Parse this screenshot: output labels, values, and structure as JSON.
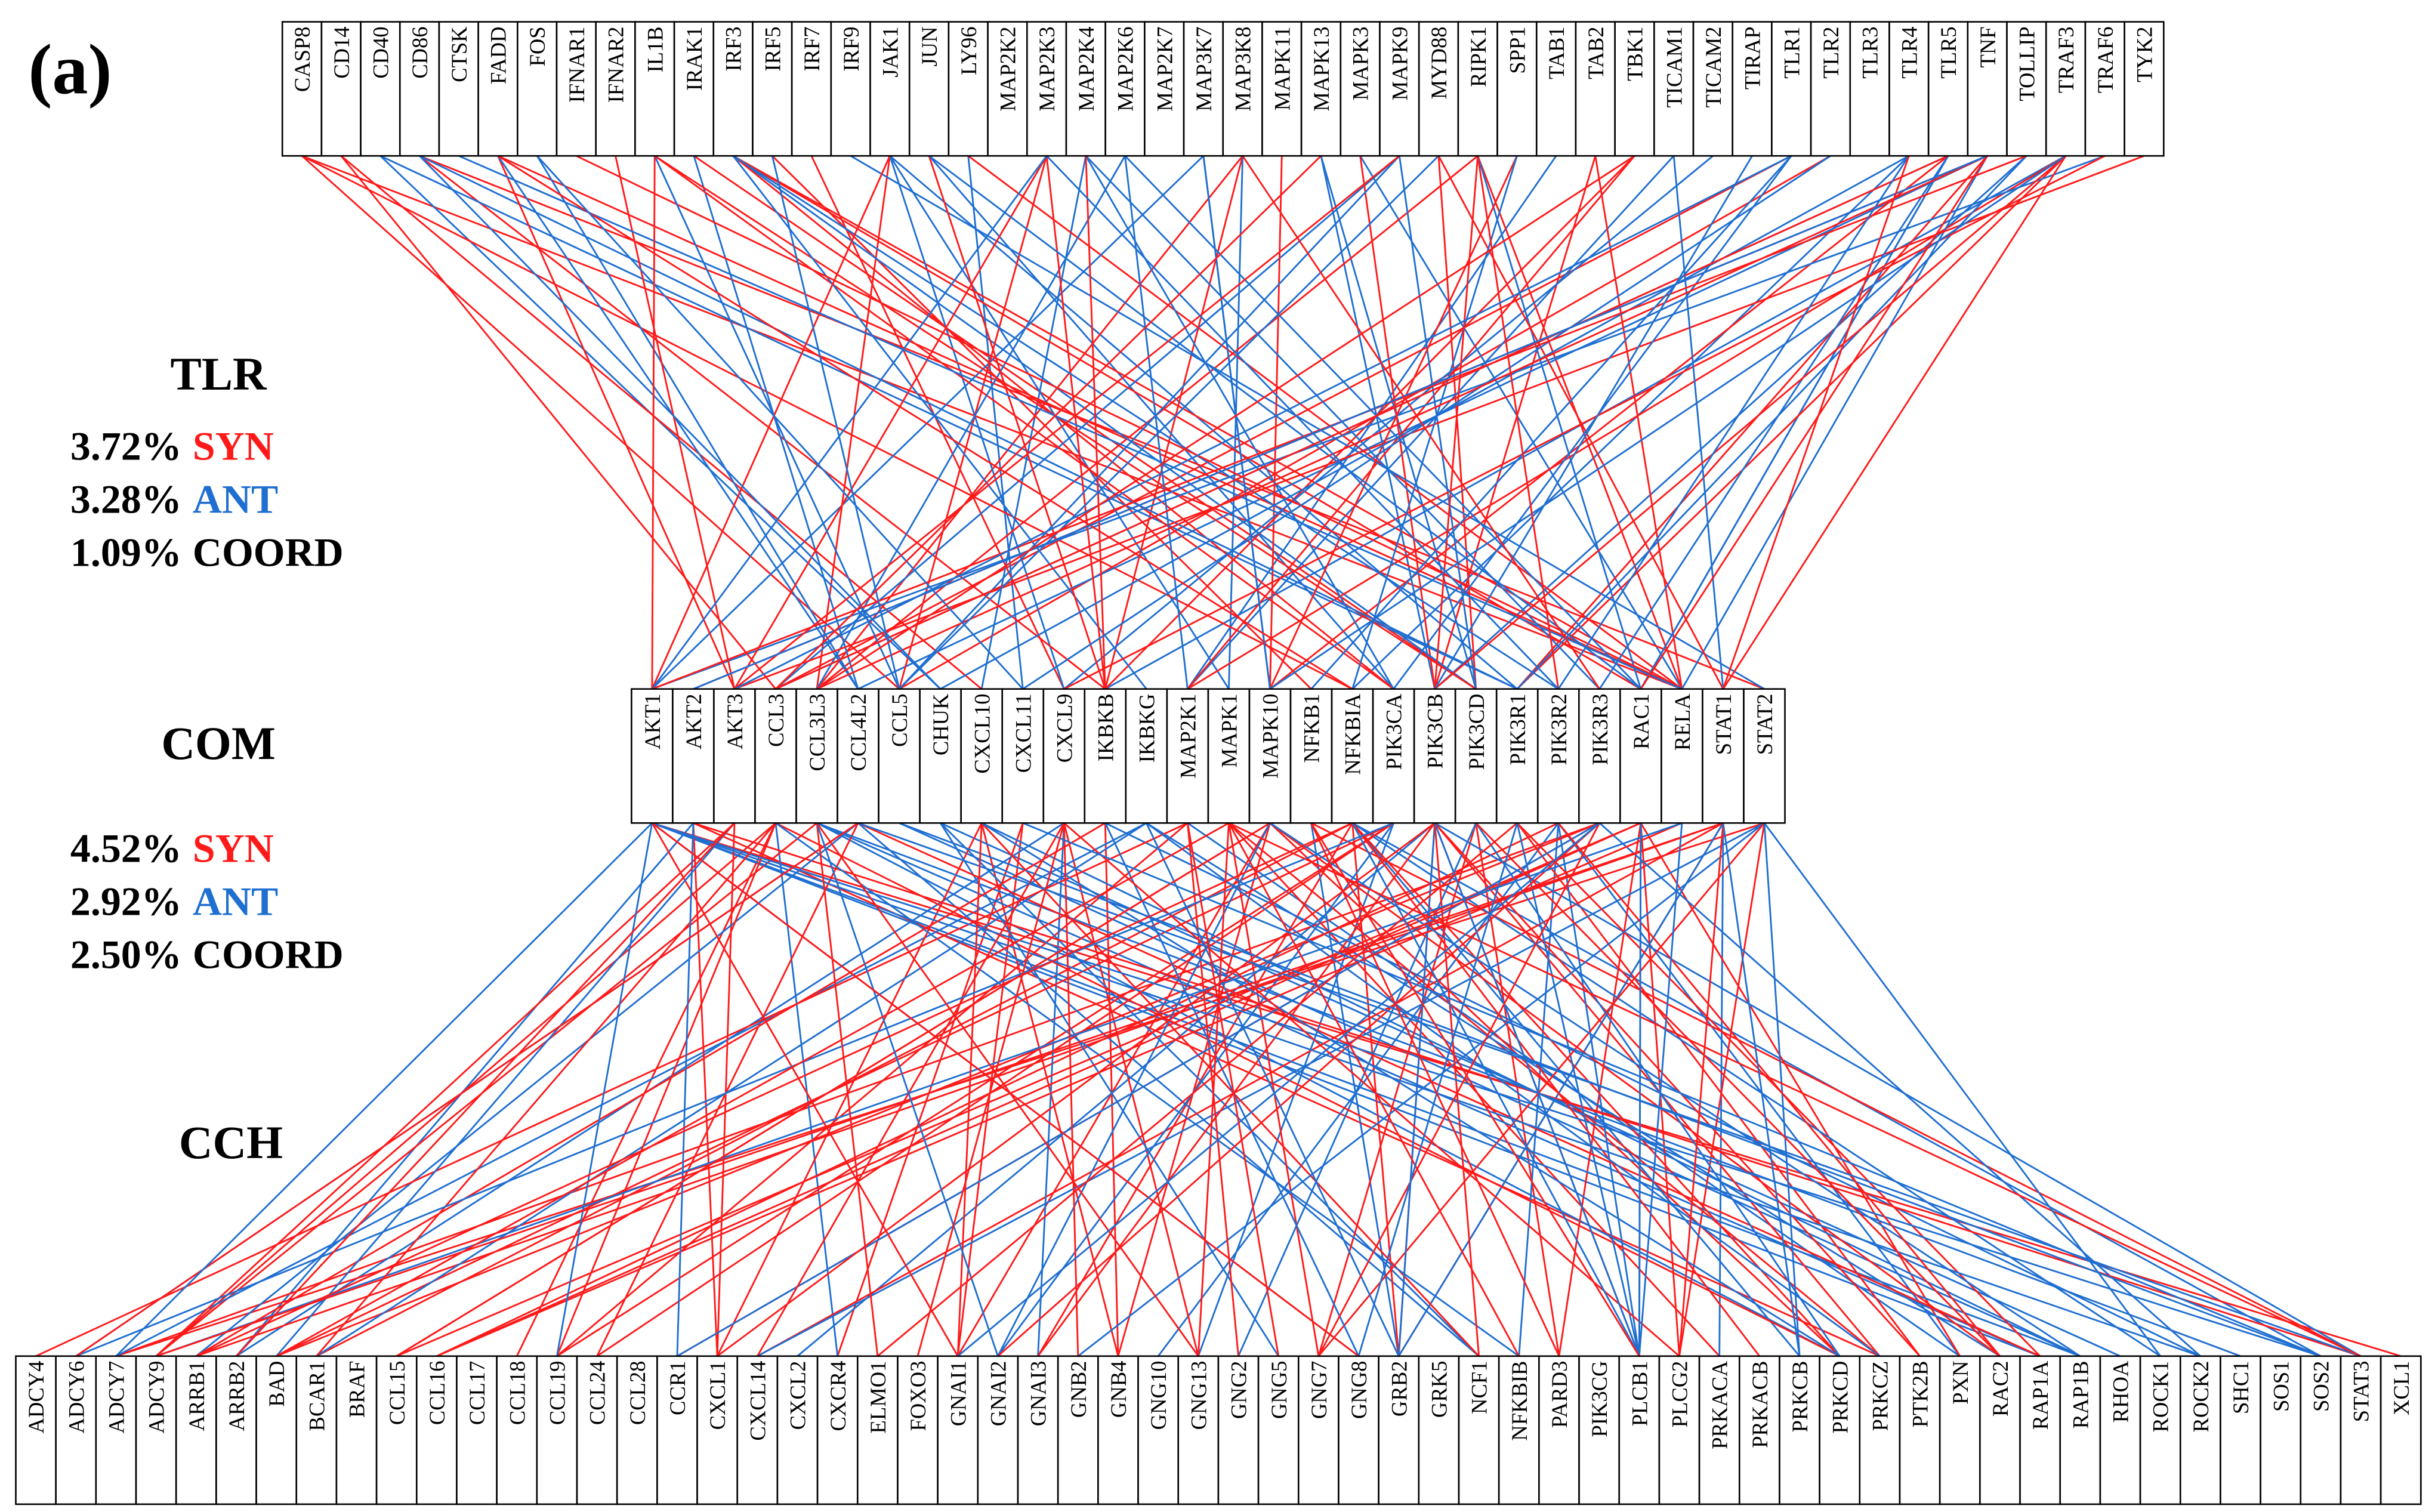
{
  "panel_label": "(a)",
  "layers": [
    {
      "name": "TLR",
      "stats": [
        {
          "value": "3.72%",
          "kind": "SYN"
        },
        {
          "value": "3.28%",
          "kind": "ANT"
        },
        {
          "value": "1.09%",
          "kind": "COORD"
        }
      ],
      "nodes": [
        "CASP8",
        "CD14",
        "CD40",
        "CD86",
        "CTSK",
        "FADD",
        "FOS",
        "IFNAR1",
        "IFNAR2",
        "IL1B",
        "IRAK1",
        "IRF3",
        "IRF5",
        "IRF7",
        "IRF9",
        "JAK1",
        "JUN",
        "LY96",
        "MAP2K2",
        "MAP2K3",
        "MAP2K4",
        "MAP2K6",
        "MAP2K7",
        "MAP3K7",
        "MAP3K8",
        "MAPK11",
        "MAPK13",
        "MAPK3",
        "MAPK9",
        "MYD88",
        "RIPK1",
        "SPP1",
        "TAB1",
        "TAB2",
        "TBK1",
        "TICAM1",
        "TICAM2",
        "TIRAP",
        "TLR1",
        "TLR2",
        "TLR3",
        "TLR4",
        "TLR5",
        "TNF",
        "TOLLIP",
        "TRAF3",
        "TRAF6",
        "TYK2"
      ]
    },
    {
      "name": "COM",
      "stats": [
        {
          "value": "4.52%",
          "kind": "SYN"
        },
        {
          "value": "2.92%",
          "kind": "ANT"
        },
        {
          "value": "2.50%",
          "kind": "COORD"
        }
      ],
      "nodes": [
        "AKT1",
        "AKT2",
        "AKT3",
        "CCL3",
        "CCL3L3",
        "CCL4L2",
        "CCL5",
        "CHUK",
        "CXCL10",
        "CXCL11",
        "CXCL9",
        "IKBKB",
        "IKBKG",
        "MAP2K1",
        "MAPK1",
        "MAPK10",
        "NFKB1",
        "NFKBIA",
        "PIK3CA",
        "PIK3CB",
        "PIK3CD",
        "PIK3R1",
        "PIK3R2",
        "PIK3R3",
        "RAC1",
        "RELA",
        "STAT1",
        "STAT2"
      ]
    },
    {
      "name": "CCH",
      "nodes": [
        "ADCY4",
        "ADCY6",
        "ADCY7",
        "ADCY9",
        "ARRB1",
        "ARRB2",
        "BAD",
        "BCAR1",
        "BRAF",
        "CCL15",
        "CCL16",
        "CCL17",
        "CCL18",
        "CCL19",
        "CCL24",
        "CCL28",
        "CCR1",
        "CXCL1",
        "CXCL14",
        "CXCL2",
        "CXCR4",
        "ELMO1",
        "FOXO3",
        "GNAI1",
        "GNAI2",
        "GNAI3",
        "GNB2",
        "GNB4",
        "GNG10",
        "GNG13",
        "GNG2",
        "GNG5",
        "GNG7",
        "GNG8",
        "GRB2",
        "GRK5",
        "NCF1",
        "NFKBIB",
        "PARD3",
        "PIK3CG",
        "PLCB1",
        "PLCG2",
        "PRKACA",
        "PRKACB",
        "PRKCB",
        "PRKCD",
        "PRKCZ",
        "PTK2B",
        "PXN",
        "RAC2",
        "RAP1A",
        "RAP1B",
        "RHOA",
        "ROCK1",
        "ROCK2",
        "SHC1",
        "SOS1",
        "SOS2",
        "STAT3",
        "XCL1"
      ]
    }
  ]
}
